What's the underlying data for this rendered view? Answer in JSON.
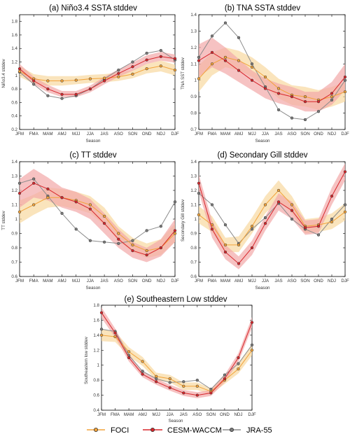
{
  "colors": {
    "foci_line": "#F2A33A",
    "foci_band": "#F8D8A0",
    "cesm_line": "#D7262B",
    "cesm_band": "#F2A8A8",
    "jra_line": "#8C8C8C",
    "jra_marker": "#7A7A7A",
    "axis": "#000000",
    "grid": "#DDDDDD"
  },
  "legend": {
    "foci": "FOCI",
    "cesm": "CESM-WACCM",
    "jra": "JRA-55"
  },
  "chart_data": [
    {
      "type": "line",
      "title": "(a) Niño3.4 SSTA stddev",
      "xlabel": "Season",
      "ylabel": "Niño3.4 stddev",
      "categories": [
        "JFM",
        "FMA",
        "MAM",
        "AMJ",
        "MJJ",
        "JJA",
        "JAS",
        "ASO",
        "SON",
        "OND",
        "NDJ",
        "DJF"
      ],
      "ylim": [
        0.2,
        1.9
      ],
      "yticks": [
        "0.2",
        "0.4",
        "0.6",
        "0.8",
        "1",
        "1.2",
        "1.4",
        "1.6",
        "1.8"
      ],
      "series": [
        {
          "name": "FOCI",
          "values": [
            1.06,
            0.95,
            0.92,
            0.92,
            0.93,
            0.95,
            0.96,
            0.98,
            1.02,
            1.1,
            1.14,
            1.08
          ],
          "lower": [
            0.98,
            0.88,
            0.85,
            0.85,
            0.87,
            0.89,
            0.9,
            0.92,
            0.96,
            1.03,
            1.06,
            1.0
          ],
          "upper": [
            1.14,
            1.02,
            0.99,
            0.99,
            0.99,
            1.01,
            1.02,
            1.04,
            1.08,
            1.17,
            1.22,
            1.16
          ]
        },
        {
          "name": "CESM-WACCM",
          "values": [
            1.1,
            0.92,
            0.8,
            0.72,
            0.72,
            0.8,
            0.92,
            1.03,
            1.13,
            1.23,
            1.28,
            1.25
          ],
          "lower": [
            1.04,
            0.87,
            0.75,
            0.68,
            0.68,
            0.75,
            0.87,
            0.98,
            1.07,
            1.17,
            1.22,
            1.19
          ],
          "upper": [
            1.17,
            0.98,
            0.86,
            0.77,
            0.77,
            0.85,
            0.98,
            1.09,
            1.19,
            1.3,
            1.35,
            1.31
          ]
        },
        {
          "name": "JRA-55",
          "values": [
            1.05,
            0.87,
            0.7,
            0.66,
            0.7,
            0.8,
            0.95,
            1.08,
            1.2,
            1.33,
            1.37,
            1.23
          ]
        }
      ]
    },
    {
      "type": "line",
      "title": "(b) TNA SSTA stddev",
      "xlabel": "Season",
      "ylabel": "TNA SST stddev",
      "categories": [
        "JFM",
        "FMA",
        "MAM",
        "AMJ",
        "MJJ",
        "JJA",
        "JAS",
        "ASO",
        "SON",
        "OND",
        "NDJ",
        "DJF"
      ],
      "ylim": [
        0.7,
        1.4
      ],
      "yticks": [
        "0.7",
        "0.8",
        "0.9",
        "1",
        "1.1",
        "1.2",
        "1.3",
        "1.4"
      ],
      "series": [
        {
          "name": "FOCI",
          "values": [
            1.01,
            1.1,
            1.14,
            1.12,
            1.08,
            1.02,
            0.95,
            0.91,
            0.9,
            0.88,
            0.9,
            0.93
          ],
          "lower": [
            0.93,
            1.03,
            1.08,
            1.06,
            1.02,
            0.96,
            0.89,
            0.85,
            0.84,
            0.82,
            0.84,
            0.87
          ],
          "upper": [
            1.09,
            1.17,
            1.2,
            1.18,
            1.14,
            1.08,
            1.01,
            0.97,
            0.96,
            0.94,
            0.96,
            0.99
          ]
        },
        {
          "name": "CESM-WACCM",
          "values": [
            1.12,
            1.17,
            1.12,
            1.06,
            1.0,
            0.95,
            0.92,
            0.9,
            0.87,
            0.87,
            0.92,
            1.02
          ],
          "lower": [
            1.02,
            1.08,
            1.04,
            0.99,
            0.94,
            0.89,
            0.86,
            0.84,
            0.81,
            0.81,
            0.85,
            0.94
          ],
          "upper": [
            1.22,
            1.26,
            1.2,
            1.13,
            1.06,
            1.01,
            0.98,
            0.96,
            0.93,
            0.93,
            0.99,
            1.1
          ]
        },
        {
          "name": "JRA-55",
          "values": [
            1.14,
            1.27,
            1.35,
            1.26,
            1.1,
            0.96,
            0.82,
            0.77,
            0.76,
            0.81,
            0.88,
            1.0
          ]
        }
      ]
    },
    {
      "type": "line",
      "title": "(c) TT stddev",
      "xlabel": "Season",
      "ylabel": "TT stddev",
      "categories": [
        "JFM",
        "FMA",
        "MAM",
        "AMJ",
        "MJJ",
        "JJA",
        "JAS",
        "ASO",
        "SON",
        "OND",
        "NDJ",
        "DJF"
      ],
      "ylim": [
        0.6,
        1.4
      ],
      "yticks": [
        "0.6",
        "0.7",
        "0.8",
        "0.9",
        "1",
        "1.1",
        "1.2",
        "1.3",
        "1.4"
      ],
      "series": [
        {
          "name": "FOCI",
          "values": [
            1.05,
            1.1,
            1.15,
            1.15,
            1.13,
            1.1,
            1.02,
            0.9,
            0.82,
            0.78,
            0.8,
            0.9
          ],
          "lower": [
            0.97,
            1.03,
            1.08,
            1.09,
            1.07,
            1.04,
            0.96,
            0.85,
            0.77,
            0.73,
            0.75,
            0.84
          ],
          "upper": [
            1.13,
            1.17,
            1.22,
            1.21,
            1.19,
            1.16,
            1.08,
            0.95,
            0.87,
            0.83,
            0.86,
            0.97
          ]
        },
        {
          "name": "CESM-WACCM",
          "values": [
            1.18,
            1.25,
            1.21,
            1.15,
            1.12,
            1.07,
            0.97,
            0.86,
            0.78,
            0.75,
            0.8,
            0.92
          ],
          "lower": [
            1.08,
            1.15,
            1.13,
            1.08,
            1.05,
            1.0,
            0.9,
            0.8,
            0.73,
            0.7,
            0.74,
            0.84
          ],
          "upper": [
            1.28,
            1.35,
            1.29,
            1.22,
            1.19,
            1.14,
            1.04,
            0.93,
            0.84,
            0.8,
            0.86,
            1.0
          ]
        },
        {
          "name": "JRA-55",
          "values": [
            1.25,
            1.28,
            1.16,
            1.04,
            0.93,
            0.85,
            0.84,
            0.83,
            0.85,
            0.92,
            0.95,
            1.12
          ]
        }
      ]
    },
    {
      "type": "line",
      "title": "(d) Secondary Gill stddev",
      "xlabel": "Season",
      "ylabel": "Secondary Gill stddev",
      "categories": [
        "JFM",
        "FMA",
        "MAM",
        "AMJ",
        "MJJ",
        "JJA",
        "JAS",
        "ASO",
        "SON",
        "OND",
        "NDJ",
        "DJF"
      ],
      "ylim": [
        0.6,
        1.4
      ],
      "yticks": [
        "0.6",
        "0.7",
        "0.8",
        "0.9",
        "1",
        "1.1",
        "1.2",
        "1.3",
        "1.4"
      ],
      "series": [
        {
          "name": "FOCI",
          "values": [
            1.03,
            0.96,
            0.82,
            0.82,
            0.95,
            1.1,
            1.2,
            1.1,
            0.95,
            0.96,
            0.98,
            1.05
          ],
          "lower": [
            0.97,
            0.91,
            0.77,
            0.77,
            0.9,
            1.04,
            1.13,
            1.04,
            0.9,
            0.91,
            0.93,
            0.99
          ],
          "upper": [
            1.09,
            1.02,
            0.87,
            0.88,
            1.01,
            1.16,
            1.27,
            1.16,
            1.0,
            1.01,
            1.04,
            1.11
          ]
        },
        {
          "name": "CESM-WACCM",
          "values": [
            1.25,
            0.93,
            0.77,
            0.69,
            0.8,
            0.97,
            1.12,
            1.06,
            0.94,
            0.95,
            1.16,
            1.33
          ],
          "lower": [
            1.19,
            0.87,
            0.72,
            0.65,
            0.75,
            0.92,
            1.06,
            1.0,
            0.89,
            0.9,
            1.1,
            1.27
          ],
          "upper": [
            1.31,
            0.99,
            0.82,
            0.74,
            0.85,
            1.02,
            1.18,
            1.12,
            0.99,
            1.0,
            1.22,
            1.39
          ]
        },
        {
          "name": "JRA-55",
          "values": [
            1.18,
            1.1,
            0.96,
            0.83,
            0.93,
            1.01,
            1.11,
            1.0,
            0.93,
            0.89,
            1.0,
            1.1
          ]
        }
      ]
    },
    {
      "type": "line",
      "title": "(e) Southeastern Low stddev",
      "xlabel": "Season",
      "ylabel": "Southeastern low stddev",
      "categories": [
        "JFM",
        "FMA",
        "MAM",
        "AMJ",
        "MJJ",
        "JJA",
        "JAS",
        "ASO",
        "SON",
        "OND",
        "NDJ",
        "DJF"
      ],
      "ylim": [
        0.4,
        1.8
      ],
      "yticks": [
        "0.4",
        "0.6",
        "0.8",
        "1",
        "1.2",
        "1.4",
        "1.6",
        "1.8"
      ],
      "series": [
        {
          "name": "FOCI",
          "values": [
            1.4,
            1.38,
            1.18,
            1.05,
            0.85,
            0.82,
            0.72,
            0.72,
            0.65,
            0.8,
            0.95,
            1.2
          ],
          "lower": [
            1.32,
            1.31,
            1.12,
            0.99,
            0.8,
            0.77,
            0.67,
            0.67,
            0.61,
            0.75,
            0.89,
            1.13
          ],
          "upper": [
            1.48,
            1.45,
            1.24,
            1.11,
            0.9,
            0.87,
            0.77,
            0.77,
            0.69,
            0.85,
            1.01,
            1.27
          ]
        },
        {
          "name": "CESM-WACCM",
          "values": [
            1.7,
            1.43,
            1.1,
            0.88,
            0.78,
            0.7,
            0.63,
            0.6,
            0.63,
            0.82,
            1.1,
            1.57
          ],
          "lower": [
            1.63,
            1.37,
            1.05,
            0.84,
            0.74,
            0.66,
            0.59,
            0.56,
            0.59,
            0.77,
            1.04,
            1.5
          ],
          "upper": [
            1.77,
            1.49,
            1.15,
            0.92,
            0.82,
            0.74,
            0.67,
            0.64,
            0.67,
            0.87,
            1.16,
            1.64
          ]
        },
        {
          "name": "JRA-55",
          "values": [
            1.48,
            1.45,
            1.13,
            0.92,
            0.82,
            0.77,
            0.78,
            0.8,
            0.68,
            0.87,
            1.02,
            1.27
          ]
        }
      ]
    }
  ]
}
